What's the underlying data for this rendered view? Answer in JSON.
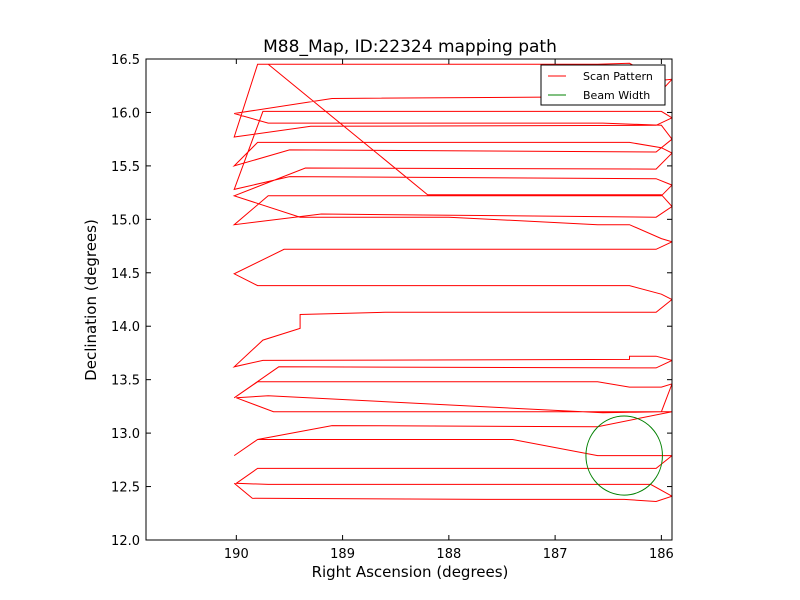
{
  "chart_data": {
    "type": "line",
    "title": "M88_Map, ID:22324 mapping path",
    "xlabel": "Right Ascension (degrees)",
    "ylabel": "Declination (degrees)",
    "xlim": [
      190.85,
      185.9
    ],
    "ylim": [
      12.0,
      16.5
    ],
    "x_reversed": true,
    "xticks": [
      190,
      189,
      188,
      187,
      186
    ],
    "xtick_labels": [
      "190",
      "189",
      "188",
      "187",
      "186"
    ],
    "yticks": [
      12.0,
      12.5,
      13.0,
      13.5,
      14.0,
      14.5,
      15.0,
      15.5,
      16.0,
      16.5
    ],
    "ytick_labels": [
      "12.0",
      "12.5",
      "13.0",
      "13.5",
      "14.0",
      "14.5",
      "15.0",
      "15.5",
      "16.0",
      "16.5"
    ],
    "grid": false,
    "legend_position": "upper right",
    "series": [
      {
        "name": "Scan Pattern",
        "color": "#ff0000",
        "kind": "path",
        "x": [
          190.02,
          189.85,
          187.65,
          186.95,
          186.35,
          186.05,
          185.9,
          186.1,
          186.38,
          186.6,
          189.05,
          189.7,
          190.0,
          189.8,
          188.2,
          187.3,
          186.4,
          186.05,
          185.9,
          186.0,
          186.3,
          186.6,
          187.4,
          189.8,
          190.02,
          189.8,
          189.1,
          186.6,
          185.9,
          186.0,
          186.55,
          189.7,
          190.0,
          189.65,
          188.0,
          187.5,
          186.55,
          186.0,
          185.9,
          186.0,
          186.3,
          186.6,
          187.4,
          189.8,
          190.02,
          189.6,
          186.05,
          185.9,
          186.05,
          186.3,
          186.3,
          189.75,
          190.02,
          189.75,
          189.4,
          189.4,
          188.6,
          186.05,
          185.9,
          186.0,
          186.3,
          186.6,
          189.8,
          190.02,
          189.55,
          186.05,
          185.9,
          186.0,
          186.3,
          186.6,
          188.0,
          189.4,
          190.02,
          189.35,
          186.05,
          185.9,
          186.0,
          186.3,
          186.6,
          189.8,
          190.02,
          189.5,
          186.05,
          185.9,
          186.0,
          186.55,
          189.7,
          190.02,
          189.1,
          186.05,
          185.9,
          186.0,
          186.3,
          186.6,
          187.5,
          189.8,
          190.02,
          189.3,
          186.05,
          185.9,
          186.0,
          186.3,
          186.6,
          189.75,
          190.02,
          189.5,
          186.05,
          185.9,
          186.0,
          186.3,
          186.6,
          189.7,
          190.02,
          189.2,
          186.05,
          185.9,
          186.0,
          186.3,
          186.5,
          188.2,
          189.7
        ],
        "y": [
          12.53,
          12.39,
          12.38,
          12.38,
          12.38,
          12.36,
          12.41,
          12.52,
          12.52,
          12.52,
          12.52,
          12.52,
          12.53,
          12.67,
          12.67,
          12.67,
          12.67,
          12.67,
          12.79,
          12.79,
          12.79,
          12.79,
          12.94,
          12.94,
          12.79,
          12.94,
          13.07,
          13.06,
          13.2,
          13.2,
          13.19,
          13.35,
          13.33,
          13.2,
          13.2,
          13.2,
          13.2,
          13.2,
          13.46,
          13.43,
          13.43,
          13.48,
          13.48,
          13.48,
          13.33,
          13.62,
          13.61,
          13.68,
          13.72,
          13.72,
          13.69,
          13.68,
          13.62,
          13.87,
          13.98,
          14.11,
          14.13,
          14.13,
          14.25,
          14.3,
          14.38,
          14.38,
          14.38,
          14.49,
          14.72,
          14.72,
          14.79,
          14.82,
          14.95,
          14.95,
          15.02,
          15.02,
          15.22,
          15.48,
          15.47,
          15.62,
          15.67,
          15.72,
          15.72,
          15.72,
          15.5,
          15.65,
          15.63,
          15.75,
          15.88,
          15.9,
          15.9,
          15.99,
          16.13,
          16.15,
          16.31,
          16.3,
          16.46,
          16.45,
          16.45,
          16.45,
          15.77,
          15.87,
          15.88,
          15.95,
          16.01,
          16.01,
          16.01,
          16.01,
          15.28,
          15.4,
          15.38,
          15.32,
          15.22,
          15.22,
          15.22,
          15.22,
          14.95,
          15.05,
          15.02,
          15.12,
          15.23,
          15.23,
          15.23,
          15.23,
          16.45
        ]
      },
      {
        "name": "Beam Width",
        "color": "#008000",
        "kind": "circle",
        "center": [
          186.35,
          12.79
        ],
        "radius_ra": 0.36,
        "radius_dec": 0.37
      }
    ]
  }
}
